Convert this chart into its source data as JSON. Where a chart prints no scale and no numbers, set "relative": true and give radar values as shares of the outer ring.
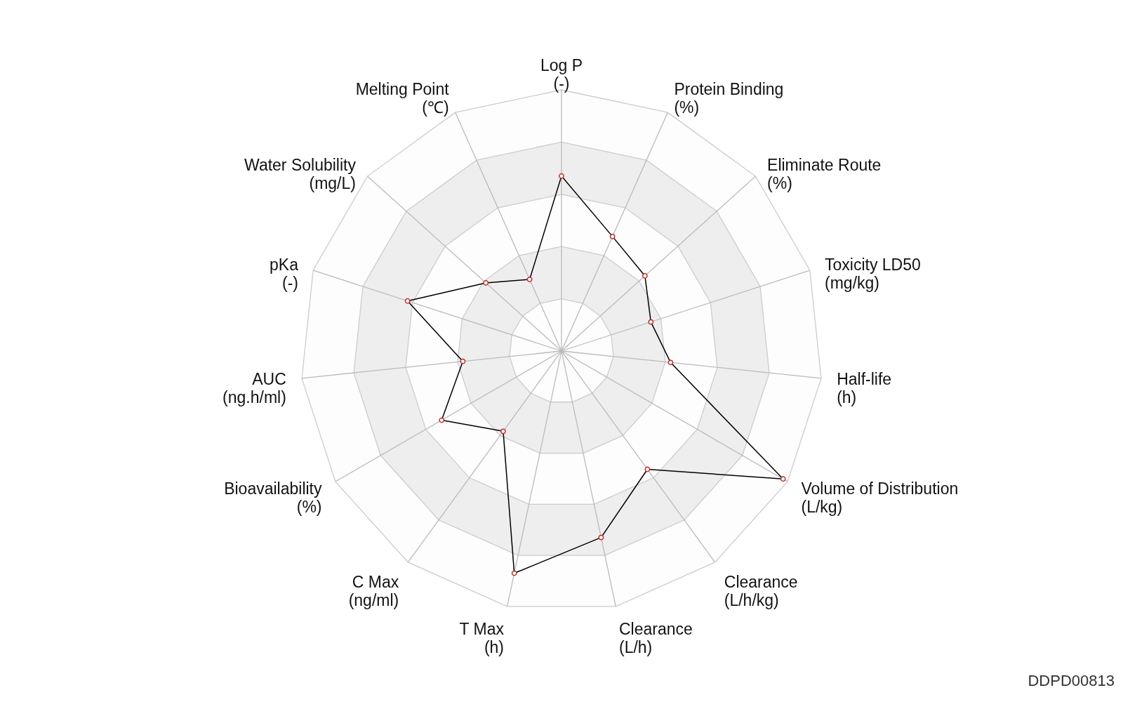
{
  "chart_data": {
    "type": "radar",
    "relative": true,
    "grid": true,
    "marker": "circle",
    "categories": [
      "Log P (-)",
      "Protein Binding (%)",
      "Eliminate Route (%)",
      "Toxicity LD50 (mg/kg)",
      "Half-life (h)",
      "Volume of Distribution (L/kg)",
      "Clearance (L/h/kg)",
      "Clearance (L/h)",
      "T Max (h)",
      "C Max (ng/ml)",
      "Bioavailability (%)",
      "AUC (ng.h/ml)",
      "pKa (-)",
      "Water Solubility (mg/L)",
      "Melting Point (℃)"
    ],
    "series": [
      {
        "color": "#000000",
        "values": [
          0.67,
          0.48,
          0.43,
          0.36,
          0.42,
          0.98,
          0.56,
          0.73,
          0.87,
          0.38,
          0.53,
          0.38,
          0.62,
          0.39,
          0.3
        ]
      }
    ],
    "annotations": [
      "DDPD00813"
    ]
  }
}
